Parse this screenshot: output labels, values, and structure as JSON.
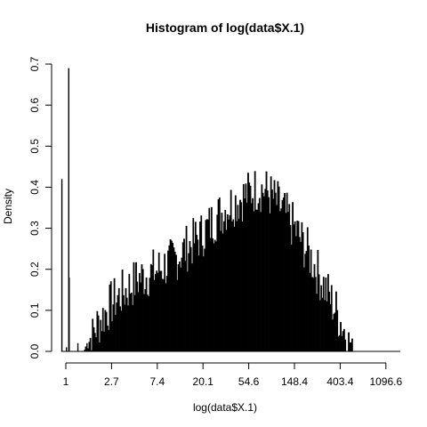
{
  "chart_data": {
    "type": "bar",
    "title": "Histogram of log(data$X.1)",
    "xlabel": "log(data$X.1)",
    "ylabel": "Density",
    "xlim": [
      -0.1,
      7.3
    ],
    "ylim": [
      0,
      0.7
    ],
    "x_ticks": [
      0,
      1,
      2,
      3,
      4,
      5,
      6,
      7
    ],
    "x_tick_labels": [
      "1",
      "2.7",
      "7.4",
      "20.1",
      "54.6",
      "148.4",
      "403.4",
      "1096.6"
    ],
    "y_ticks": [
      0.0,
      0.1,
      0.2,
      0.3,
      0.4,
      0.5,
      0.6,
      0.7
    ],
    "y_tick_labels": [
      "0.0",
      "0.1",
      "0.2",
      "0.3",
      "0.4",
      "0.5",
      "0.6",
      "0.7"
    ],
    "spikes": [
      {
        "x": -0.1,
        "value": 0.42
      },
      {
        "x": 0.0,
        "value": 0.01
      },
      {
        "x": 0.05,
        "value": 0.69
      },
      {
        "x": 0.06,
        "value": 0.18
      },
      {
        "x": 0.25,
        "value": 0.02
      },
      {
        "x": 0.45,
        "value": 0.02
      }
    ],
    "envelope": [
      {
        "x": 0.4,
        "value": 0.0
      },
      {
        "x": 0.7,
        "value": 0.05
      },
      {
        "x": 1.0,
        "value": 0.1
      },
      {
        "x": 1.3,
        "value": 0.13
      },
      {
        "x": 1.6,
        "value": 0.16
      },
      {
        "x": 2.0,
        "value": 0.18
      },
      {
        "x": 2.3,
        "value": 0.2
      },
      {
        "x": 2.6,
        "value": 0.23
      },
      {
        "x": 3.0,
        "value": 0.27
      },
      {
        "x": 3.3,
        "value": 0.31
      },
      {
        "x": 3.6,
        "value": 0.34
      },
      {
        "x": 3.9,
        "value": 0.36
      },
      {
        "x": 4.2,
        "value": 0.38
      },
      {
        "x": 4.4,
        "value": 0.37
      },
      {
        "x": 4.7,
        "value": 0.33
      },
      {
        "x": 5.0,
        "value": 0.28
      },
      {
        "x": 5.3,
        "value": 0.22
      },
      {
        "x": 5.6,
        "value": 0.15
      },
      {
        "x": 5.9,
        "value": 0.08
      },
      {
        "x": 6.1,
        "value": 0.03
      },
      {
        "x": 6.3,
        "value": 0.0
      }
    ],
    "bar_width": 0.025,
    "grid": false,
    "legend": false
  }
}
